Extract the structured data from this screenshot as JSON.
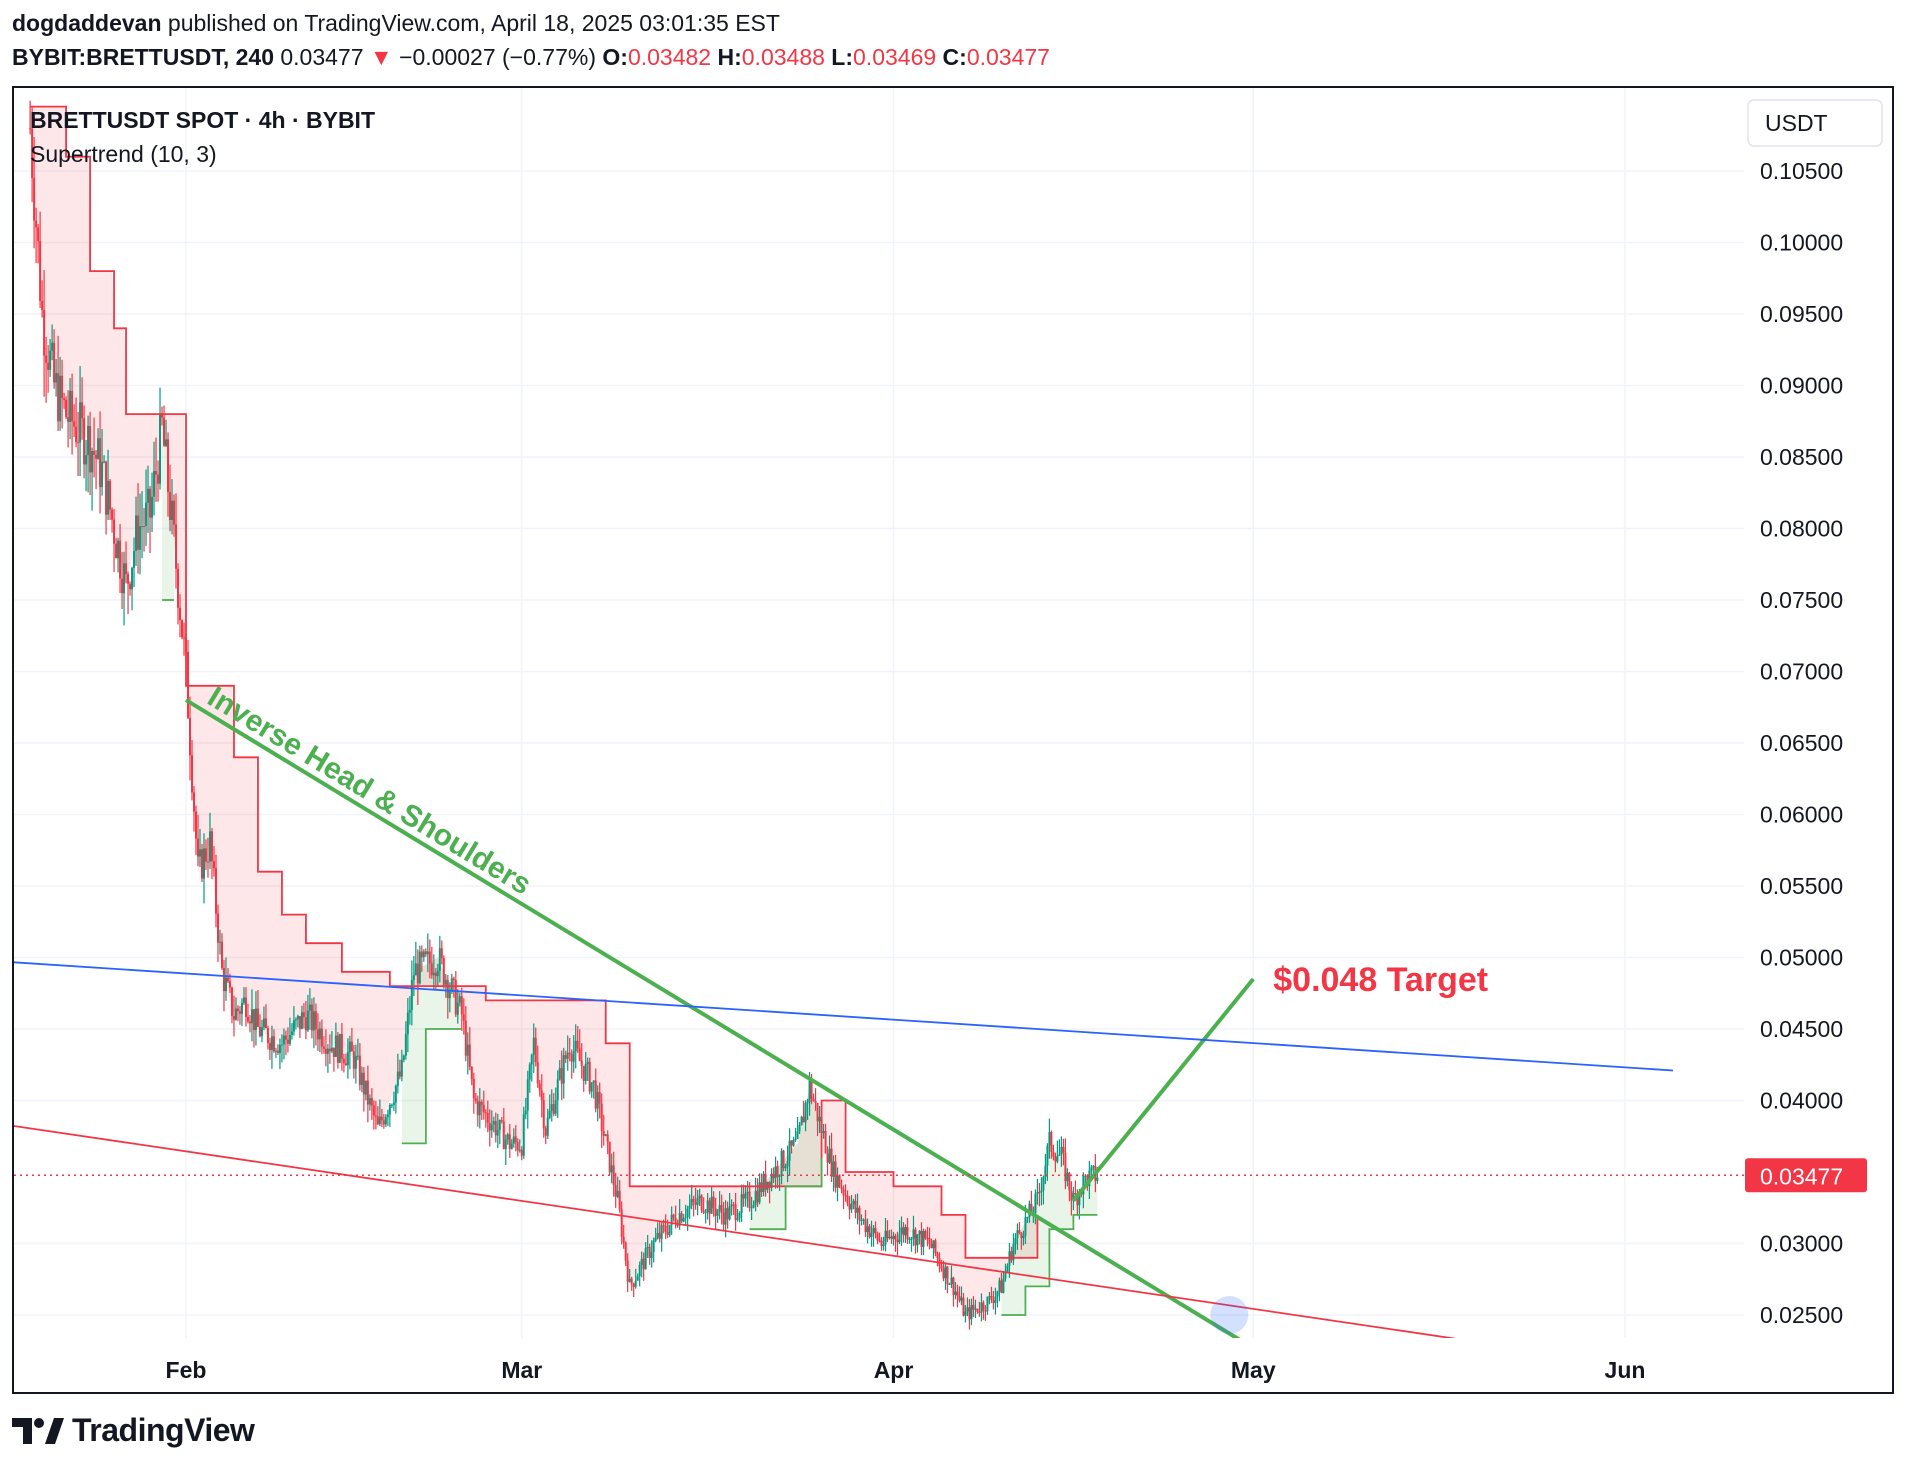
{
  "header": {
    "author": "dogdaddevan",
    "published_text": "published on TradingView.com, April 18, 2025 03:01:35 EST",
    "symbol": "BYBIT:BRETTUSDT, 240",
    "last": "0.03477",
    "change_arrow": "▼",
    "change": "−0.00027 (−0.77%)",
    "o_label": "O:",
    "o": "0.03482",
    "h_label": "H:",
    "h": "0.03488",
    "l_label": "L:",
    "l": "0.03469",
    "c_label": "C:",
    "c": "0.03477"
  },
  "legend": {
    "title": "BRETTUSDT SPOT · 4h · BYBIT",
    "indicator": "Supertrend (10, 3)"
  },
  "footer": {
    "brand": "TradingView",
    "logo_icon": "tradingview-logo-icon"
  },
  "chart_data": {
    "type": "candlestick",
    "currency_button": "USDT",
    "y_ticks": [
      "0.10500",
      "0.10000",
      "0.09500",
      "0.09000",
      "0.08500",
      "0.08000",
      "0.07500",
      "0.07000",
      "0.06500",
      "0.06000",
      "0.05500",
      "0.05000",
      "0.04500",
      "0.04000",
      "0.03000",
      "0.02500"
    ],
    "ylim": [
      0.0232,
      0.1095
    ],
    "x_ticks": [
      {
        "label": "Feb",
        "date": "2025-02-01"
      },
      {
        "label": "Mar",
        "date": "2025-03-01"
      },
      {
        "label": "Apr",
        "date": "2025-04-01"
      },
      {
        "label": "May",
        "date": "2025-05-01"
      },
      {
        "label": "Jun",
        "date": "2025-06-01"
      }
    ],
    "last_price": 0.03477,
    "last_price_label": "0.03477",
    "colors": {
      "up": "#089981",
      "down": "#f23645",
      "supertrend_down": "#f23645",
      "supertrend_up": "#4caf50",
      "trend_green": "#4caf50",
      "blue_line": "#2962ff",
      "red_line": "#f23645"
    },
    "price_path": [
      [
        "2025-01-19",
        0.108
      ],
      [
        "2025-01-20",
        0.095
      ],
      [
        "2025-01-21",
        0.09
      ],
      [
        "2025-01-22",
        0.088
      ],
      [
        "2025-01-23",
        0.087
      ],
      [
        "2025-01-24",
        0.086
      ],
      [
        "2025-01-25",
        0.084
      ],
      [
        "2025-01-26",
        0.08
      ],
      [
        "2025-01-27",
        0.076
      ],
      [
        "2025-01-28",
        0.08
      ],
      [
        "2025-01-29",
        0.081
      ],
      [
        "2025-01-30",
        0.087
      ],
      [
        "2025-01-31",
        0.079
      ],
      [
        "2025-02-01",
        0.07
      ],
      [
        "2025-02-02",
        0.056
      ],
      [
        "2025-02-03",
        0.058
      ],
      [
        "2025-02-04",
        0.049
      ],
      [
        "2025-02-05",
        0.046
      ],
      [
        "2025-02-06",
        0.047
      ],
      [
        "2025-02-07",
        0.045
      ],
      [
        "2025-02-09",
        0.044
      ],
      [
        "2025-02-11",
        0.046
      ],
      [
        "2025-02-13",
        0.044
      ],
      [
        "2025-02-15",
        0.043
      ],
      [
        "2025-02-17",
        0.038
      ],
      [
        "2025-02-19",
        0.042
      ],
      [
        "2025-02-20",
        0.049
      ],
      [
        "2025-02-22",
        0.05
      ],
      [
        "2025-02-24",
        0.046
      ],
      [
        "2025-02-25",
        0.04
      ],
      [
        "2025-02-27",
        0.038
      ],
      [
        "2025-02-28",
        0.037
      ],
      [
        "2025-03-01",
        0.037
      ],
      [
        "2025-03-02",
        0.044
      ],
      [
        "2025-03-03",
        0.038
      ],
      [
        "2025-03-05",
        0.044
      ],
      [
        "2025-03-07",
        0.041
      ],
      [
        "2025-03-09",
        0.033
      ],
      [
        "2025-03-10",
        0.027
      ],
      [
        "2025-03-12",
        0.03
      ],
      [
        "2025-03-14",
        0.032
      ],
      [
        "2025-03-16",
        0.033
      ],
      [
        "2025-03-18",
        0.032
      ],
      [
        "2025-03-20",
        0.033
      ],
      [
        "2025-03-22",
        0.035
      ],
      [
        "2025-03-24",
        0.037
      ],
      [
        "2025-03-25",
        0.041
      ],
      [
        "2025-03-27",
        0.035
      ],
      [
        "2025-03-29",
        0.032
      ],
      [
        "2025-03-31",
        0.03
      ],
      [
        "2025-04-02",
        0.031
      ],
      [
        "2025-04-04",
        0.03
      ],
      [
        "2025-04-06",
        0.027
      ],
      [
        "2025-04-07",
        0.025
      ],
      [
        "2025-04-09",
        0.026
      ],
      [
        "2025-04-10",
        0.027
      ],
      [
        "2025-04-11",
        0.03
      ],
      [
        "2025-04-13",
        0.033
      ],
      [
        "2025-04-14",
        0.037
      ],
      [
        "2025-04-15",
        0.036
      ],
      [
        "2025-04-16",
        0.033
      ],
      [
        "2025-04-17",
        0.0345
      ],
      [
        "2025-04-18",
        0.0348
      ]
    ],
    "supertrend_down": [
      [
        "2025-01-19",
        0.1095
      ],
      [
        "2025-01-22",
        0.106
      ],
      [
        "2025-01-24",
        0.098
      ],
      [
        "2025-01-26",
        0.094
      ],
      [
        "2025-01-27",
        0.088
      ],
      [
        "2025-01-30",
        0.088
      ],
      [
        "2025-02-01",
        0.069
      ],
      [
        "2025-02-04",
        0.069
      ],
      [
        "2025-02-05",
        0.064
      ],
      [
        "2025-02-07",
        0.056
      ],
      [
        "2025-02-09",
        0.053
      ],
      [
        "2025-02-11",
        0.051
      ],
      [
        "2025-02-14",
        0.049
      ],
      [
        "2025-02-18",
        0.048
      ],
      [
        "2025-02-24",
        0.048
      ],
      [
        "2025-02-26",
        0.047
      ],
      [
        "2025-03-02",
        0.047
      ],
      [
        "2025-03-08",
        0.044
      ],
      [
        "2025-03-10",
        0.034
      ],
      [
        "2025-03-14",
        0.034
      ],
      [
        "2025-03-26",
        0.04
      ],
      [
        "2025-03-28",
        0.035
      ],
      [
        "2025-04-01",
        0.034
      ],
      [
        "2025-04-05",
        0.032
      ],
      [
        "2025-04-07",
        0.029
      ],
      [
        "2025-04-10",
        0.029
      ],
      [
        "2025-04-13",
        0.032
      ]
    ],
    "supertrend_up": [
      [
        "2025-01-30",
        0.075
      ],
      [
        "2025-01-31",
        0.075
      ],
      [
        "2025-02-19",
        0.037
      ],
      [
        "2025-02-21",
        0.045
      ],
      [
        "2025-02-24",
        0.045
      ],
      [
        "2025-03-14",
        0.03
      ],
      [
        "2025-03-20",
        0.031
      ],
      [
        "2025-03-23",
        0.034
      ],
      [
        "2025-03-26",
        0.036
      ],
      [
        "2025-04-10",
        0.025
      ],
      [
        "2025-04-12",
        0.027
      ],
      [
        "2025-04-14",
        0.031
      ],
      [
        "2025-04-16",
        0.032
      ],
      [
        "2025-04-18",
        0.032
      ]
    ],
    "annotations": [
      {
        "kind": "trendline",
        "name": "inverse-head-shoulders-neckline",
        "color": "#4caf50",
        "from": [
          "2025-02-01",
          0.068
        ],
        "to": [
          "2025-04-30",
          0.0232
        ]
      },
      {
        "kind": "trendline",
        "name": "target-projection-line",
        "color": "#4caf50",
        "from": [
          "2025-04-16",
          0.033
        ],
        "to": [
          "2025-05-01",
          0.0485
        ]
      },
      {
        "kind": "trendline",
        "name": "blue-resistance-line",
        "color": "#2962ff",
        "from": [
          "2025-01-17",
          0.0497
        ],
        "to": [
          "2025-06-05",
          0.0421
        ]
      },
      {
        "kind": "trendline",
        "name": "red-support-line",
        "color": "#f23645",
        "from": [
          "2025-01-17",
          0.0383
        ],
        "to": [
          "2025-05-19",
          0.0232
        ]
      },
      {
        "kind": "text",
        "name": "pattern-label",
        "text": "Inverse Head & Shoulders",
        "color": "#4caf50"
      },
      {
        "kind": "text",
        "name": "target-label",
        "text": "$0.048 Target",
        "color": "#f23645"
      }
    ]
  }
}
